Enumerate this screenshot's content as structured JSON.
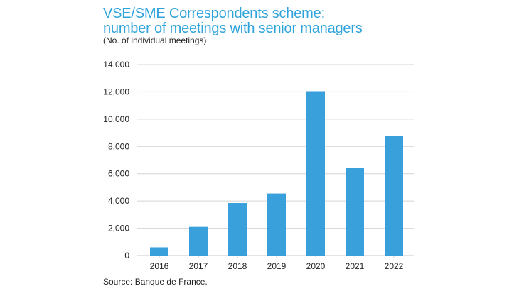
{
  "title_line1": "VSE/SME Correspondents scheme:",
  "title_line2": "number of meetings with senior managers",
  "subtitle": "(No. of individual meetings)",
  "source": "Source: Banque de France.",
  "colors": {
    "bar": "#3aa0dc",
    "title": "#2ea3dc",
    "grid": "#d4d4d4",
    "text": "#222222"
  },
  "chart_data": {
    "type": "bar",
    "title": "VSE/SME Correspondents scheme: number of meetings with senior managers",
    "ylabel": "(No. of individual meetings)",
    "xlabel": "",
    "categories": [
      "2016",
      "2017",
      "2018",
      "2019",
      "2020",
      "2021",
      "2022"
    ],
    "values": [
      600,
      2100,
      3850,
      4550,
      12050,
      6450,
      8750
    ],
    "ylim": [
      0,
      14000
    ],
    "yticks": [
      0,
      2000,
      4000,
      6000,
      8000,
      10000,
      12000,
      14000
    ],
    "ytick_labels": [
      "0",
      "2,000",
      "4,000",
      "6,000",
      "8,000",
      "10,000",
      "12,000",
      "14,000"
    ],
    "grid": true,
    "legend": "none"
  }
}
